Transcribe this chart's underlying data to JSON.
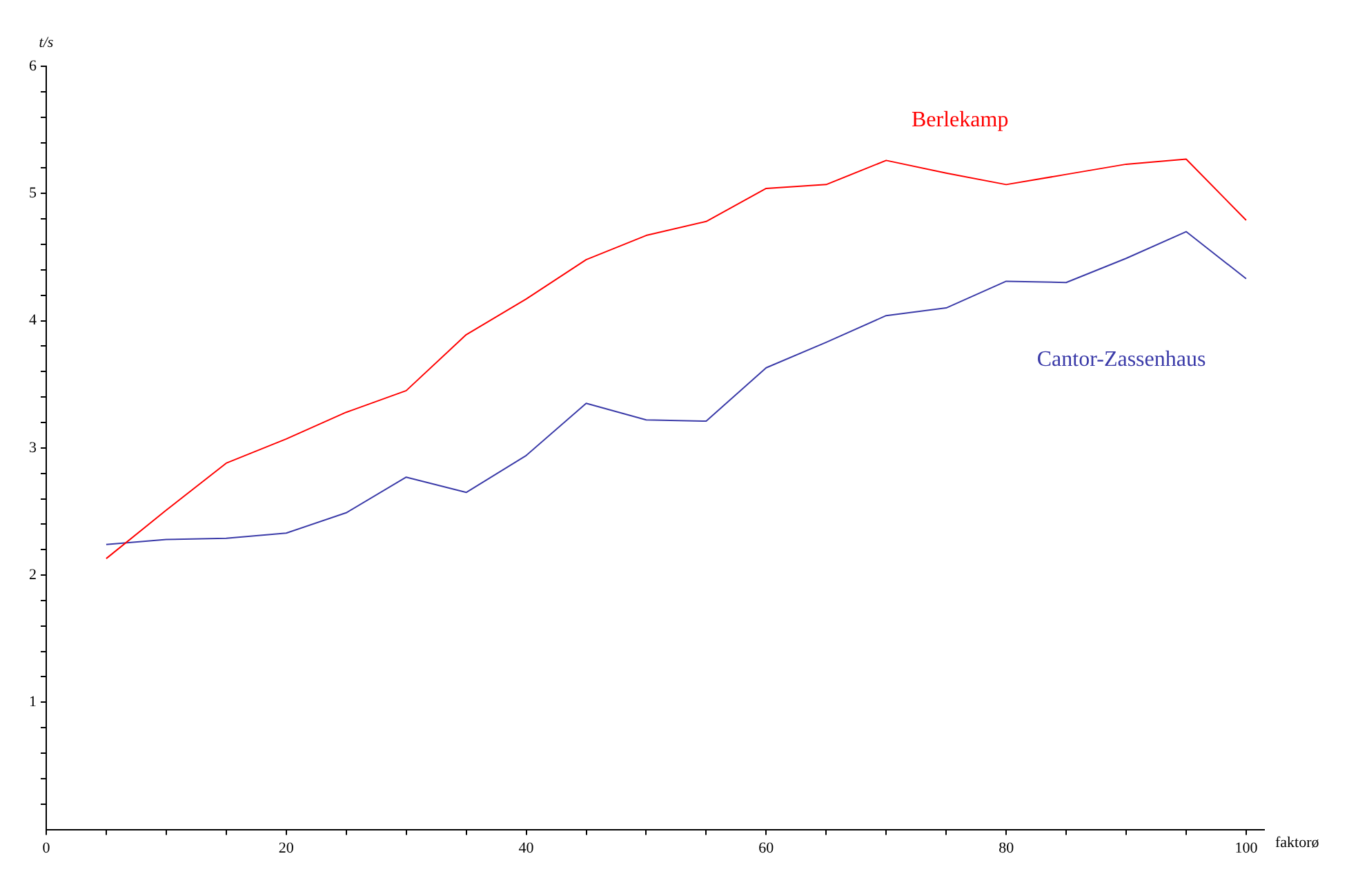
{
  "chart_data": {
    "type": "line",
    "xlabel": "faktorø",
    "ylabel": "t/s",
    "x": [
      5,
      10,
      15,
      20,
      25,
      30,
      35,
      40,
      45,
      50,
      55,
      60,
      65,
      70,
      75,
      80,
      85,
      90,
      95,
      100
    ],
    "series": [
      {
        "name": "Berlekamp",
        "color": "#ff0000",
        "values": [
          2.13,
          2.51,
          2.88,
          3.07,
          3.28,
          3.45,
          3.89,
          4.17,
          4.48,
          4.67,
          4.78,
          5.04,
          5.07,
          5.26,
          5.16,
          5.07,
          5.15,
          5.23,
          5.27,
          4.79
        ]
      },
      {
        "name": "Cantor-Zassenhaus",
        "color": "#3a3aa8",
        "values": [
          2.24,
          2.28,
          2.29,
          2.33,
          2.49,
          2.77,
          2.65,
          2.94,
          3.35,
          3.22,
          3.21,
          3.63,
          3.83,
          4.04,
          4.1,
          4.31,
          4.3,
          4.49,
          4.7,
          4.33
        ]
      }
    ],
    "xlim": [
      0,
      101.5
    ],
    "ylim": [
      0,
      6
    ],
    "xticks": [
      0,
      {
        "value": 5,
        "label": null
      },
      {
        "value": 10,
        "label": null
      },
      {
        "value": 15,
        "label": null
      },
      20,
      {
        "value": 25,
        "label": null
      },
      {
        "value": 30,
        "label": null
      },
      {
        "value": 35,
        "label": null
      },
      40,
      {
        "value": 45,
        "label": null
      },
      {
        "value": 50,
        "label": null
      },
      {
        "value": 55,
        "label": null
      },
      60,
      {
        "value": 65,
        "label": null
      },
      {
        "value": 70,
        "label": null
      },
      {
        "value": 75,
        "label": null
      },
      80,
      {
        "value": 85,
        "label": null
      },
      {
        "value": 90,
        "label": null
      },
      {
        "value": 95,
        "label": null
      },
      100
    ],
    "yticks": [
      {
        "value": 0.2,
        "label": null
      },
      {
        "value": 0.4,
        "label": null
      },
      {
        "value": 0.6,
        "label": null
      },
      {
        "value": 0.8,
        "label": null
      },
      1,
      {
        "value": 1.2,
        "label": null
      },
      {
        "value": 1.4,
        "label": null
      },
      {
        "value": 1.6,
        "label": null
      },
      {
        "value": 1.8,
        "label": null
      },
      2,
      {
        "value": 2.2,
        "label": null
      },
      {
        "value": 2.4,
        "label": null
      },
      {
        "value": 2.6,
        "label": null
      },
      {
        "value": 2.8,
        "label": null
      },
      3,
      {
        "value": 3.2,
        "label": null
      },
      {
        "value": 3.4,
        "label": null
      },
      {
        "value": 3.6,
        "label": null
      },
      {
        "value": 3.8,
        "label": null
      },
      4,
      {
        "value": 4.2,
        "label": null
      },
      {
        "value": 4.4,
        "label": null
      },
      {
        "value": 4.6,
        "label": null
      },
      {
        "value": 4.8,
        "label": null
      },
      5,
      {
        "value": 5.2,
        "label": null
      },
      {
        "value": 5.4,
        "label": null
      },
      {
        "value": 5.6,
        "label": null
      },
      {
        "value": 5.8,
        "label": null
      },
      6
    ],
    "grid": false,
    "legend": false,
    "marker": "none",
    "line_style": "solid"
  }
}
